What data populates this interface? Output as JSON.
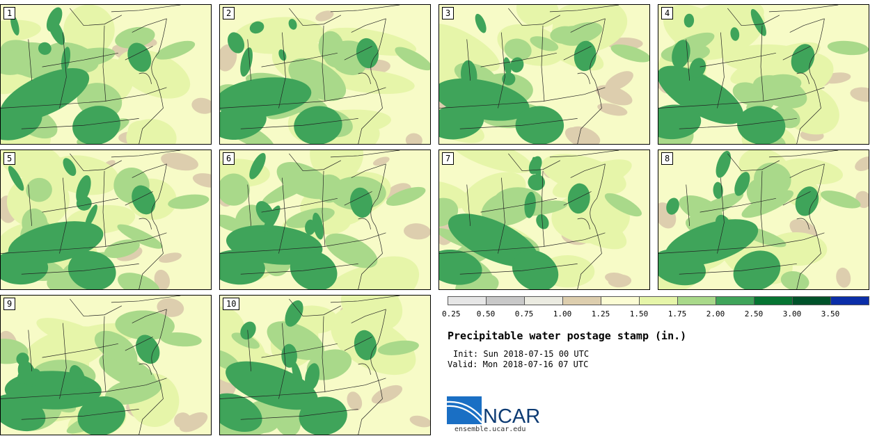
{
  "members": [
    "1",
    "2",
    "3",
    "4",
    "5",
    "6",
    "7",
    "8",
    "9",
    "10"
  ],
  "colorbar": {
    "ticks": [
      "0.25",
      "0.50",
      "0.75",
      "1.00",
      "1.25",
      "1.50",
      "1.75",
      "2.00",
      "2.50",
      "3.00",
      "3.50"
    ],
    "colors": [
      "#e6e6e6",
      "#c8c8c8",
      "#ebebe1",
      "#ddceae",
      "#fbfcd4",
      "#e6f5a9",
      "#a9d98a",
      "#3fa45a",
      "#067432",
      "#00522a",
      "#0b2ea8"
    ]
  },
  "title": "Precipitable water postage stamp (in.)",
  "init": {
    "label": "Init:",
    "value": "Sun 2018-07-15 00 UTC"
  },
  "valid": {
    "label": "Valid:",
    "value": "Mon 2018-07-16 07 UTC"
  },
  "logo": {
    "text": "NCAR",
    "url": "ensemble.ucar.edu"
  }
}
